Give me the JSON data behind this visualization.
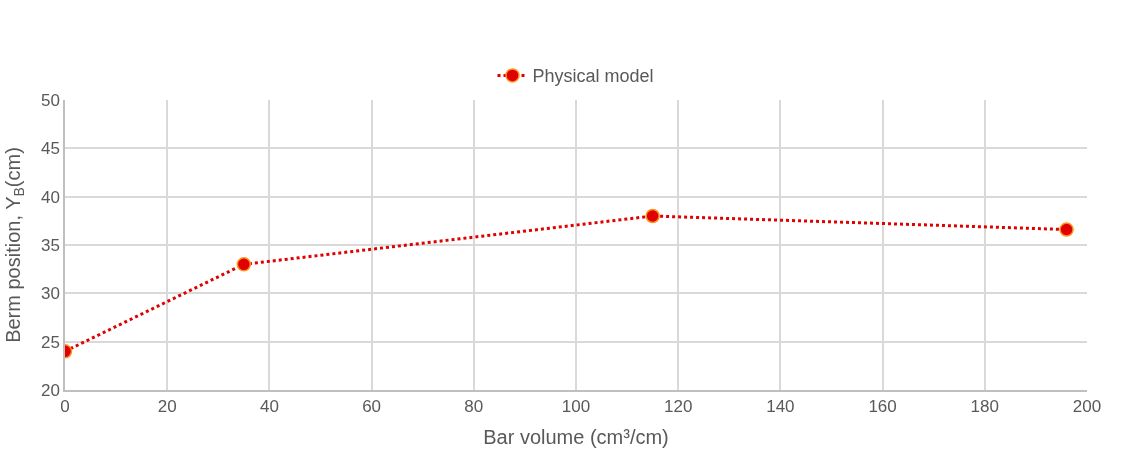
{
  "chart_data": {
    "type": "line",
    "xlabel": "Bar volume (cm³/cm)",
    "ylabel": "Berm position, Y$_{B}$(cm)",
    "x": [
      0,
      35,
      115,
      196
    ],
    "series": [
      {
        "name": "Physical model",
        "color": "#e00000",
        "values": [
          24,
          33,
          38,
          36.6
        ]
      }
    ],
    "xlim": [
      0,
      200
    ],
    "xticks": [
      0,
      20,
      40,
      60,
      80,
      100,
      120,
      140,
      160,
      180,
      200
    ],
    "ylim": [
      20,
      50
    ],
    "yticks": [
      20,
      25,
      30,
      35,
      40,
      45,
      50
    ],
    "grid": true,
    "legend": "top",
    "marker": "circle",
    "line_style": "dotted"
  }
}
